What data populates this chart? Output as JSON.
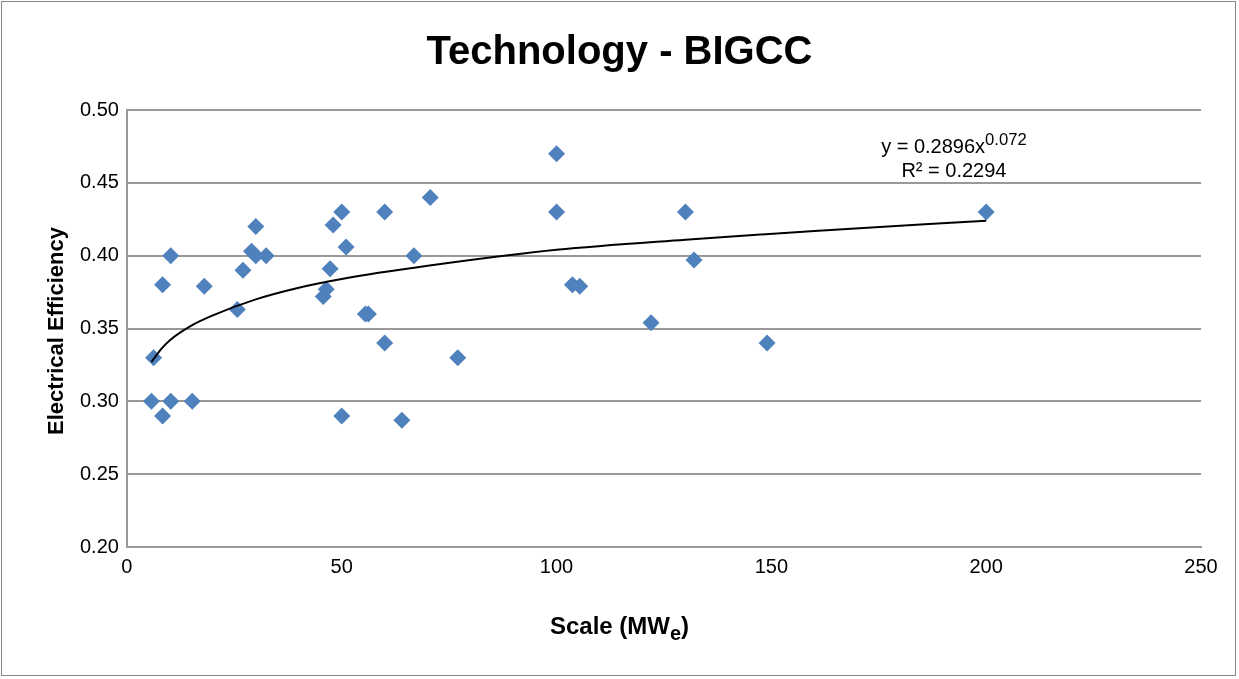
{
  "chart_data": {
    "type": "scatter",
    "title": "Technology - BIGCC",
    "xlabel": "Scale (MW$_{e}$)",
    "ylabel": "Electrical Efficiency",
    "xlim": [
      0,
      250
    ],
    "xticks": [
      0,
      50,
      100,
      150,
      200,
      250
    ],
    "ylim": [
      0.2,
      0.5
    ],
    "yticks": [
      {
        "value": 0.2,
        "label": "0.20"
      },
      {
        "value": 0.25,
        "label": "0.25"
      },
      {
        "value": 0.3,
        "label": "0.30"
      },
      {
        "value": 0.35,
        "label": "0.35"
      },
      {
        "value": 0.4,
        "label": "0.40"
      },
      {
        "value": 0.45,
        "label": "0.45"
      },
      {
        "value": 0.5,
        "label": "0.50"
      }
    ],
    "grid": "y",
    "legend": false,
    "marker": "diamond",
    "annotations": [
      "y = 0.2896x$^{0.072}$",
      "R² = 0.2294"
    ],
    "series": [
      {
        "color": "#4f81bd",
        "x": [
          6.2,
          5.7,
          8.3,
          10.2,
          15.2,
          8.3,
          10.2,
          18,
          25.7,
          27,
          29,
          30,
          30,
          32.4,
          45.7,
          46.4,
          47.3,
          48,
          50,
          51,
          50,
          55.5,
          56.2,
          60,
          60,
          64,
          66.8,
          70.6,
          77,
          100,
          100,
          103.7,
          105.4,
          122,
          130,
          132,
          149,
          200
        ],
        "values": [
          0.33,
          0.3,
          0.29,
          0.3,
          0.3,
          0.38,
          0.4,
          0.379,
          0.363,
          0.39,
          0.403,
          0.42,
          0.4,
          0.4,
          0.372,
          0.377,
          0.391,
          0.421,
          0.43,
          0.406,
          0.29,
          0.36,
          0.36,
          0.43,
          0.34,
          0.287,
          0.4,
          0.44,
          0.33,
          0.47,
          0.43,
          0.38,
          0.379,
          0.354,
          0.43,
          0.397,
          0.34,
          0.43
        ]
      },
      {
        "type": "line",
        "color": "#000000",
        "marker": "none",
        "x": [
          5.7,
          8,
          10,
          15,
          20,
          30,
          40,
          50,
          70,
          100,
          130,
          160,
          200
        ],
        "values": [
          0.327,
          0.336,
          0.342,
          0.352,
          0.359,
          0.37,
          0.378,
          0.384,
          0.393,
          0.404,
          0.411,
          0.417,
          0.424
        ]
      }
    ]
  }
}
